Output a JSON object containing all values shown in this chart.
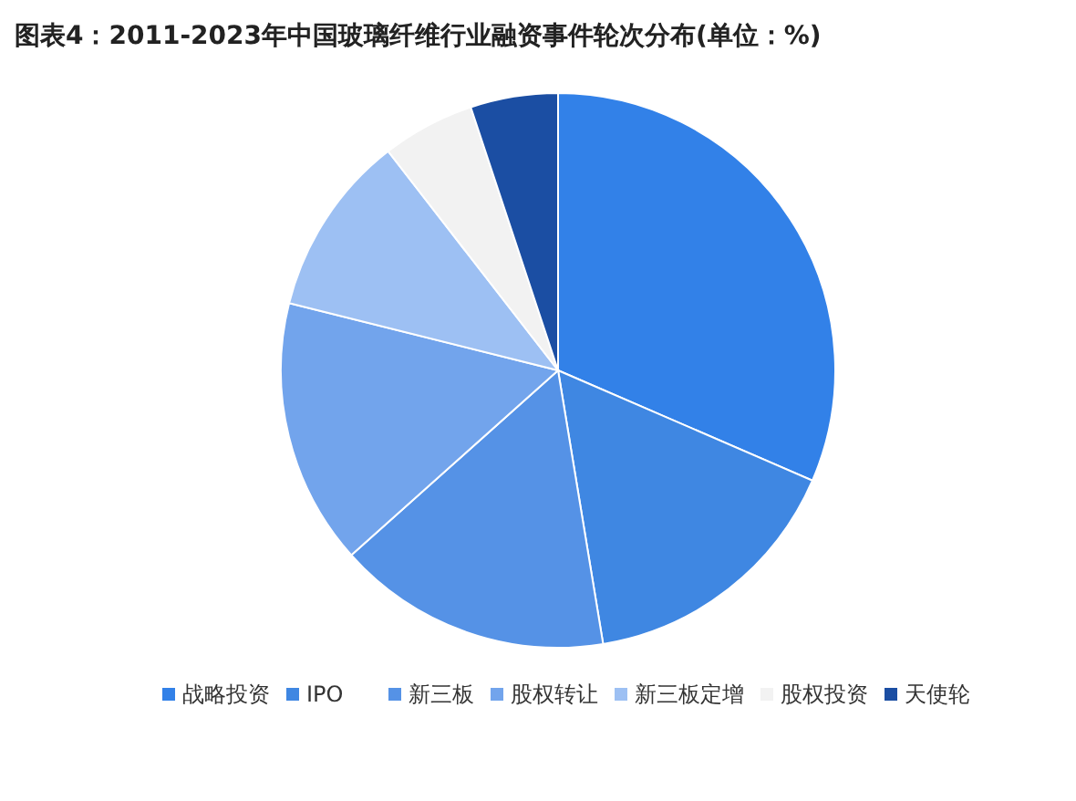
{
  "chart_data": {
    "type": "pie",
    "title": "图表4：2011-2023年中国玻璃纤维行业融资事件轮次分布(单位：%)",
    "categories": [
      "战略投资",
      "IPO",
      "新三板",
      "股权转让",
      "新三板定增",
      "股权投资",
      "天使轮"
    ],
    "values": [
      31.5,
      15.9,
      16.0,
      15.5,
      10.6,
      5.4,
      5.1
    ],
    "colors": [
      "#3281e8",
      "#3f87e2",
      "#5592e6",
      "#72a4ec",
      "#9dc0f3",
      "#f2f2f2",
      "#1b4ea3"
    ],
    "legend": "bottom"
  }
}
